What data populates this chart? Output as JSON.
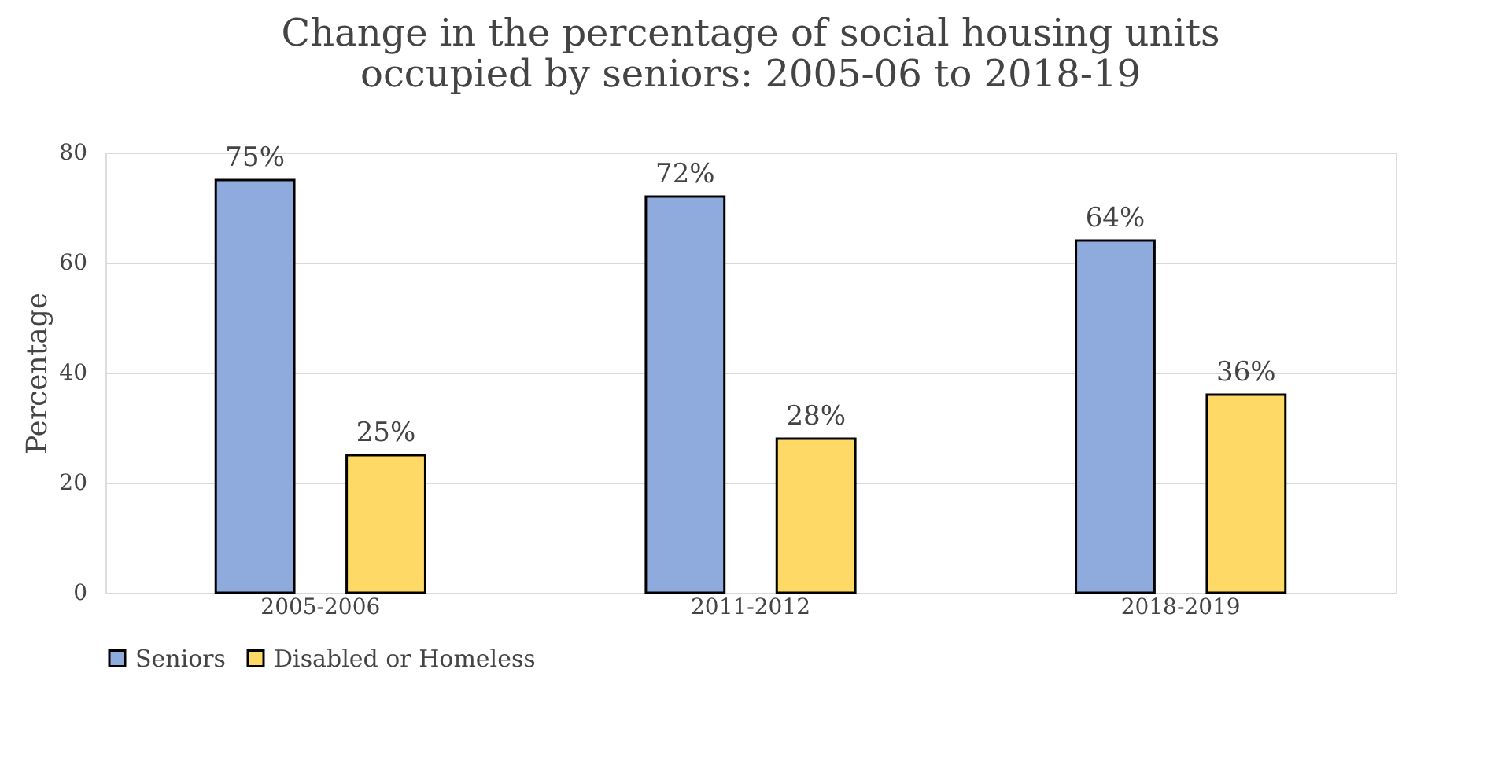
{
  "chart_data": {
    "type": "bar",
    "title": [
      "Change in the percentage of social housing units",
      "occupied by seniors: 2005-06 to 2018-19"
    ],
    "ylabel": "Percentage",
    "categories": [
      "2005-2006",
      "2011-2012",
      "2018-2019"
    ],
    "series": [
      {
        "name": "Seniors",
        "color": "#8faadc",
        "values": [
          75,
          72,
          64
        ],
        "value_labels": [
          "75%",
          "72%",
          "64%"
        ]
      },
      {
        "name": "Disabled or Homeless",
        "color": "#ffd966",
        "values": [
          25,
          28,
          36
        ],
        "value_labels": [
          "25%",
          "28%",
          "36%"
        ]
      }
    ],
    "ylim": [
      0,
      80
    ],
    "yticks": [
      0,
      20,
      40,
      60,
      80
    ],
    "grid": "y",
    "legend": "bottom"
  }
}
